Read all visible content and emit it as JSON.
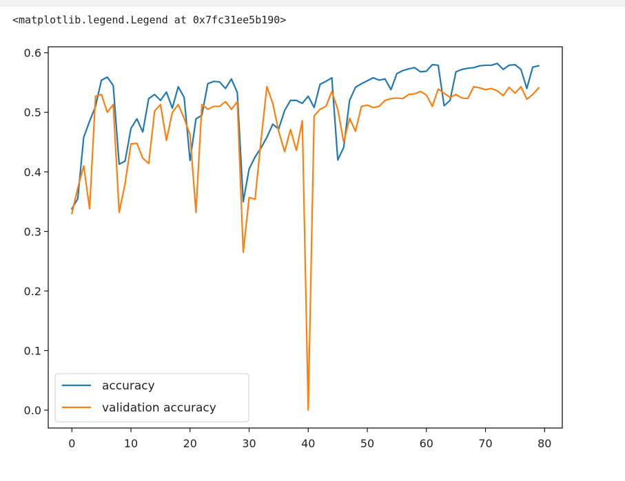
{
  "output": {
    "repr_text": "<matplotlib.legend.Legend at 0x7fc31ee5b190>"
  },
  "chart_data": {
    "type": "line",
    "title": "",
    "xlabel": "",
    "ylabel": "",
    "xlim": [
      -4,
      83
    ],
    "ylim": [
      -0.03,
      0.61
    ],
    "xticks": [
      0,
      10,
      20,
      30,
      40,
      50,
      60,
      70,
      80
    ],
    "yticks": [
      0.0,
      0.1,
      0.2,
      0.3,
      0.4,
      0.5,
      0.6
    ],
    "xtick_labels": [
      "0",
      "10",
      "20",
      "30",
      "40",
      "50",
      "60",
      "70",
      "80"
    ],
    "ytick_labels": [
      "0.0",
      "0.1",
      "0.2",
      "0.3",
      "0.4",
      "0.5",
      "0.6"
    ],
    "grid": false,
    "legend_position": "lower-left",
    "x": [
      0,
      1,
      2,
      3,
      4,
      5,
      6,
      7,
      8,
      9,
      10,
      11,
      12,
      13,
      14,
      15,
      16,
      17,
      18,
      19,
      20,
      21,
      22,
      23,
      24,
      25,
      26,
      27,
      28,
      29,
      30,
      31,
      32,
      33,
      34,
      35,
      36,
      37,
      38,
      39,
      40,
      41,
      42,
      43,
      44,
      45,
      46,
      47,
      48,
      49,
      50,
      51,
      52,
      53,
      54,
      55,
      56,
      57,
      58,
      59,
      60,
      61,
      62,
      63,
      64,
      65,
      66,
      67,
      68,
      69,
      70,
      71,
      72,
      73,
      74,
      75,
      76,
      77,
      78,
      79
    ],
    "series": [
      {
        "name": "accuracy",
        "color": "#1f77b4",
        "values": [
          0.338,
          0.355,
          0.458,
          0.485,
          0.51,
          0.554,
          0.559,
          0.545,
          0.413,
          0.418,
          0.473,
          0.489,
          0.467,
          0.523,
          0.53,
          0.52,
          0.534,
          0.507,
          0.543,
          0.525,
          0.419,
          0.489,
          0.495,
          0.548,
          0.552,
          0.551,
          0.54,
          0.556,
          0.533,
          0.35,
          0.405,
          0.425,
          0.44,
          0.458,
          0.48,
          0.472,
          0.503,
          0.52,
          0.52,
          0.515,
          0.527,
          0.508,
          0.547,
          0.552,
          0.558,
          0.42,
          0.441,
          0.52,
          0.542,
          0.548,
          0.553,
          0.558,
          0.554,
          0.556,
          0.538,
          0.565,
          0.57,
          0.573,
          0.575,
          0.568,
          0.569,
          0.58,
          0.579,
          0.511,
          0.52,
          0.568,
          0.572,
          0.574,
          0.575,
          0.578,
          0.579,
          0.579,
          0.582,
          0.572,
          0.579,
          0.58,
          0.572,
          0.54,
          0.576,
          0.578
        ]
      },
      {
        "name": "validation accuracy",
        "color": "#ff7f0e",
        "values": [
          0.33,
          0.373,
          0.41,
          0.338,
          0.527,
          0.53,
          0.5,
          0.513,
          0.332,
          0.38,
          0.447,
          0.448,
          0.423,
          0.414,
          0.502,
          0.513,
          0.453,
          0.5,
          0.513,
          0.49,
          0.462,
          0.332,
          0.513,
          0.505,
          0.51,
          0.51,
          0.518,
          0.505,
          0.518,
          0.265,
          0.357,
          0.354,
          0.452,
          0.543,
          0.515,
          0.468,
          0.434,
          0.471,
          0.436,
          0.486,
          0.0,
          0.494,
          0.505,
          0.51,
          0.535,
          0.505,
          0.45,
          0.49,
          0.468,
          0.51,
          0.512,
          0.508,
          0.51,
          0.52,
          0.523,
          0.524,
          0.523,
          0.53,
          0.531,
          0.535,
          0.529,
          0.51,
          0.539,
          0.532,
          0.525,
          0.53,
          0.524,
          0.523,
          0.543,
          0.541,
          0.538,
          0.54,
          0.536,
          0.528,
          0.542,
          0.532,
          0.543,
          0.522,
          0.53,
          0.541
        ]
      }
    ]
  }
}
